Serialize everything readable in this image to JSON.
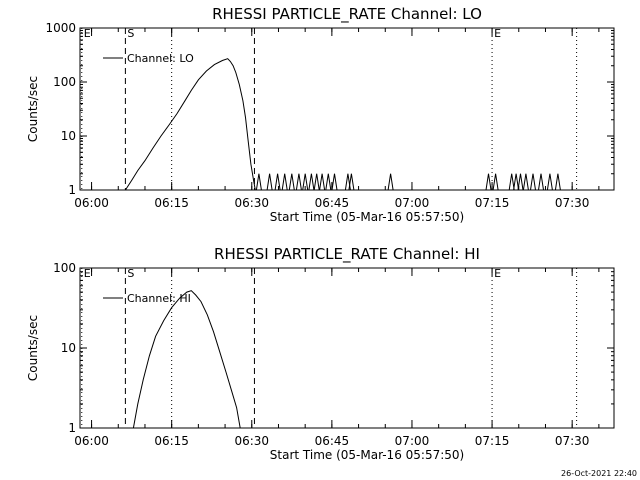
{
  "chart_data": [
    {
      "type": "line",
      "title": "RHESSI PARTICLE_RATE Channel: LO",
      "xlabel": "Start Time (05-Mar-16 05:57:50)",
      "ylabel": "Counts/sec",
      "y_scale": "log",
      "ylim": [
        1,
        1000
      ],
      "xlim": [
        "05:57:50",
        "07:37:50"
      ],
      "x_ticks": [
        "06:00",
        "06:15",
        "06:30",
        "06:45",
        "07:00",
        "07:15",
        "07:30"
      ],
      "y_ticks": [
        "1",
        "10",
        "100",
        "1000"
      ],
      "legend": {
        "label": "Channel: LO",
        "position": "top-left"
      },
      "markers": [
        {
          "label": "E",
          "time": "05:58:10",
          "style": "dotted"
        },
        {
          "label": "S",
          "time": "06:06:20",
          "style": "dashed"
        },
        {
          "label": "",
          "time": "06:15:00",
          "style": "dotted"
        },
        {
          "label": "",
          "time": "06:30:30",
          "style": "dashed"
        },
        {
          "label": "E",
          "time": "07:15:00",
          "style": "dotted"
        },
        {
          "label": "",
          "time": "07:30:50",
          "style": "dotted"
        }
      ],
      "series": [
        {
          "name": "Channel: LO",
          "points": [
            [
              "06:06:20",
              1
            ],
            [
              "06:07:30",
              1.5
            ],
            [
              "06:08:40",
              2.3
            ],
            [
              "06:10:00",
              3.5
            ],
            [
              "06:11:30",
              6
            ],
            [
              "06:13:00",
              10
            ],
            [
              "06:14:30",
              16
            ],
            [
              "06:16:00",
              26
            ],
            [
              "06:17:30",
              45
            ],
            [
              "06:18:40",
              70
            ],
            [
              "06:20:00",
              110
            ],
            [
              "06:21:30",
              160
            ],
            [
              "06:23:00",
              210
            ],
            [
              "06:24:30",
              250
            ],
            [
              "06:25:30",
              270
            ],
            [
              "06:26:00",
              240
            ],
            [
              "06:26:30",
              200
            ],
            [
              "06:27:00",
              150
            ],
            [
              "06:27:40",
              90
            ],
            [
              "06:28:20",
              45
            ],
            [
              "06:28:50",
              22
            ],
            [
              "06:29:20",
              8
            ],
            [
              "06:29:50",
              3
            ],
            [
              "06:30:20",
              1.5
            ],
            [
              "06:30:40",
              1
            ]
          ]
        }
      ],
      "spikes_at_2": [
        "06:31:20",
        "06:33:20",
        "06:34:50",
        "06:36:10",
        "06:37:30",
        "06:38:50",
        "06:40:00",
        "06:41:10",
        "06:42:10",
        "06:43:10",
        "06:44:20",
        "06:45:30",
        "06:48:00",
        "06:48:40",
        "06:56:00",
        "07:14:20",
        "07:15:40",
        "07:18:40",
        "07:19:30",
        "07:20:20",
        "07:21:20",
        "07:22:40",
        "07:24:10",
        "07:25:50",
        "07:27:20"
      ]
    },
    {
      "type": "line",
      "title": "RHESSI PARTICLE_RATE Channel: HI",
      "xlabel": "Start Time (05-Mar-16 05:57:50)",
      "ylabel": "Counts/sec",
      "y_scale": "log",
      "ylim": [
        1,
        100
      ],
      "xlim": [
        "05:57:50",
        "07:37:50"
      ],
      "x_ticks": [
        "06:00",
        "06:15",
        "06:30",
        "06:45",
        "07:00",
        "07:15",
        "07:30"
      ],
      "y_ticks": [
        "1",
        "10",
        "100"
      ],
      "legend": {
        "label": "Channel: HI",
        "position": "top-left"
      },
      "markers": [
        {
          "label": "E",
          "time": "05:58:10",
          "style": "dotted"
        },
        {
          "label": "S",
          "time": "06:06:20",
          "style": "dashed"
        },
        {
          "label": "",
          "time": "06:15:00",
          "style": "dotted"
        },
        {
          "label": "",
          "time": "06:30:30",
          "style": "dashed"
        },
        {
          "label": "E",
          "time": "07:15:00",
          "style": "dotted"
        },
        {
          "label": "",
          "time": "07:30:50",
          "style": "dotted"
        }
      ],
      "series": [
        {
          "name": "Channel: HI",
          "points": [
            [
              "06:07:50",
              1
            ],
            [
              "06:08:40",
              2
            ],
            [
              "06:09:40",
              4
            ],
            [
              "06:10:50",
              8
            ],
            [
              "06:12:00",
              14
            ],
            [
              "06:13:30",
              22
            ],
            [
              "06:15:00",
              32
            ],
            [
              "06:16:30",
              42
            ],
            [
              "06:17:50",
              50
            ],
            [
              "06:18:40",
              52
            ],
            [
              "06:19:30",
              46
            ],
            [
              "06:20:30",
              38
            ],
            [
              "06:21:40",
              26
            ],
            [
              "06:22:50",
              16
            ],
            [
              "06:24:00",
              9
            ],
            [
              "06:25:10",
              5
            ],
            [
              "06:26:10",
              3
            ],
            [
              "06:27:10",
              1.8
            ],
            [
              "06:27:50",
              1
            ]
          ]
        }
      ]
    }
  ],
  "timestamp": "26-Oct-2021 22:40"
}
